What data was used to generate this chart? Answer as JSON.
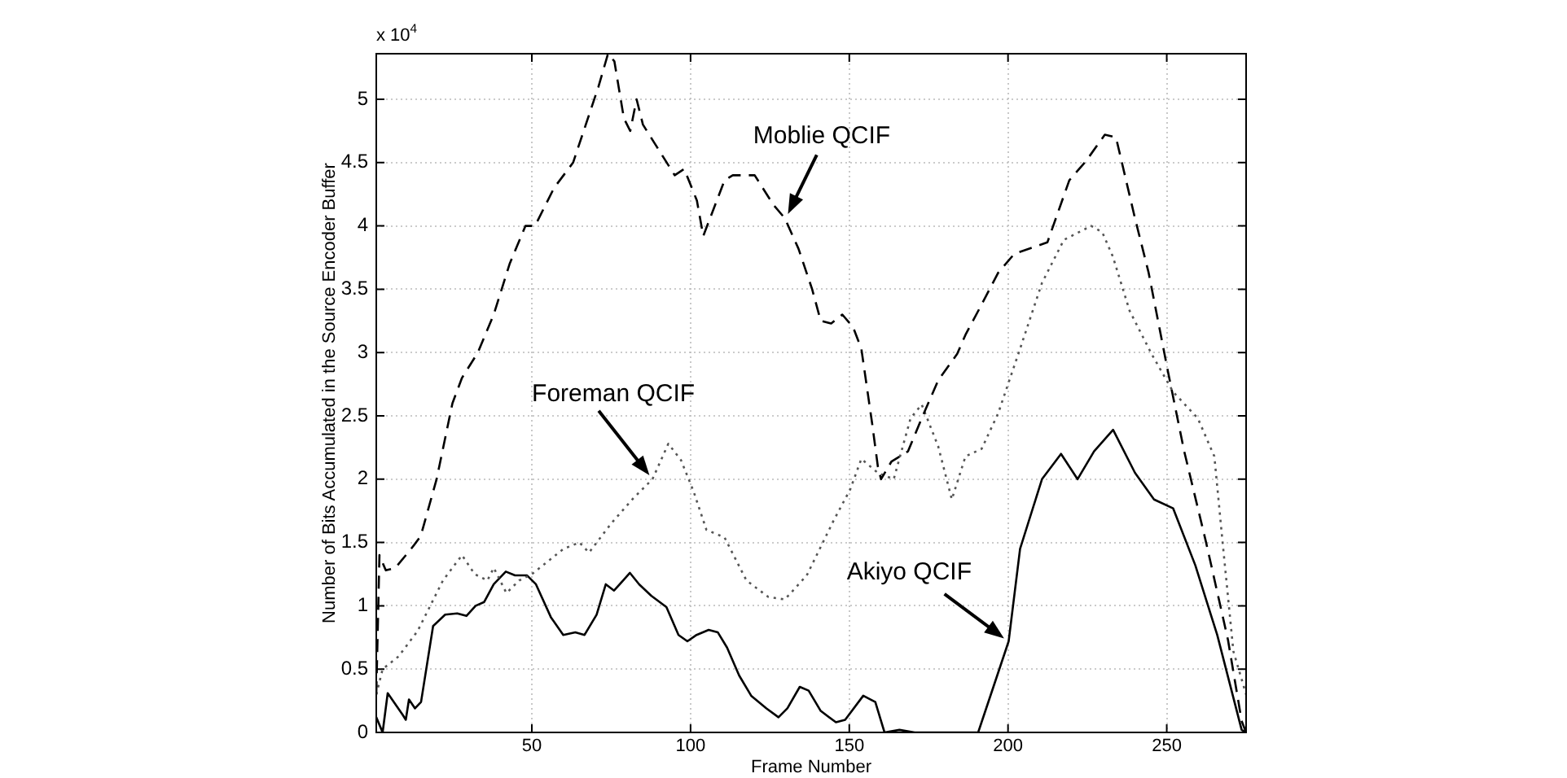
{
  "chart_data": {
    "type": "line",
    "xlabel": "Frame Number",
    "ylabel": "Number of Bits Accumulated in the Source Encoder Buffer",
    "xlim": [
      1,
      275
    ],
    "xticks": [
      50,
      100,
      150,
      200,
      250
    ],
    "ylim": [
      0,
      5.36
    ],
    "yticks": [
      0,
      0.5,
      1,
      1.5,
      2,
      2.5,
      3,
      3.5,
      4,
      4.5,
      5
    ],
    "grid": true,
    "legend": false,
    "marker": "none",
    "annotations": [
      "x 10$^{4}$",
      {
        "text": "Moblie QCIF",
        "x": 130,
        "y": 4.06
      },
      {
        "text": "Foreman QCIF",
        "x": 88,
        "y": 2.0
      },
      {
        "text": "Akiyo QCIF",
        "x": 200,
        "y": 0.72
      }
    ],
    "series": [
      {
        "color": "#000000",
        "line_style": "dashed",
        "x": [
          1,
          2,
          4,
          7,
          12,
          15,
          20,
          25,
          28,
          33,
          38,
          43,
          48,
          51,
          57,
          63,
          67,
          71,
          74,
          76,
          79,
          81,
          83,
          85,
          90,
          95,
          98,
          102,
          104,
          110.7,
          113.3,
          120.2,
          126,
          129.7,
          134,
          138.3,
          141,
          144.3,
          147.8,
          151.2,
          153.8,
          157.2,
          159,
          160,
          163.3,
          168.5,
          172.8,
          178,
          184,
          186.6,
          191.7,
          196.9,
          202,
          212.4,
          219.3,
          224.5,
          230.5,
          234,
          240,
          244.3,
          250.3,
          255.5,
          262.4,
          269.3,
          273.6,
          275
        ],
        "values": [
          0.3,
          1.4,
          1.28,
          1.3,
          1.45,
          1.55,
          2.0,
          2.6,
          2.8,
          3.0,
          3.3,
          3.7,
          4.0,
          4.0,
          4.3,
          4.5,
          4.8,
          5.1,
          5.36,
          5.3,
          4.85,
          4.75,
          5.0,
          4.8,
          4.6,
          4.4,
          4.45,
          4.2,
          3.92,
          4.36,
          4.4,
          4.4,
          4.17,
          4.06,
          3.82,
          3.5,
          3.25,
          3.23,
          3.3,
          3.2,
          3.03,
          2.44,
          2.1,
          2.0,
          2.14,
          2.22,
          2.48,
          2.78,
          2.99,
          3.14,
          3.38,
          3.63,
          3.78,
          3.87,
          4.36,
          4.51,
          4.72,
          4.7,
          4.06,
          3.63,
          2.86,
          2.22,
          1.5,
          0.73,
          0.09,
          0
        ]
      },
      {
        "color": "#555555",
        "line_style": "dotted",
        "x": [
          1,
          3,
          8,
          14,
          18,
          22,
          28,
          32,
          36,
          38,
          42,
          46,
          50,
          55,
          60,
          65,
          68,
          75,
          82,
          88,
          93,
          97,
          101,
          105,
          110.7,
          117.6,
          124.5,
          129.7,
          136.6,
          145,
          150.3,
          153.8,
          159,
          164,
          169.3,
          172.8,
          178,
          182.3,
          186.6,
          191.7,
          196.9,
          203.8,
          210.7,
          217.6,
          226.2,
          229.7,
          233,
          238.3,
          245.2,
          252,
          259.8,
          265,
          267.6,
          271,
          275
        ],
        "values": [
          0.3,
          0.5,
          0.6,
          0.8,
          1.0,
          1.2,
          1.4,
          1.25,
          1.2,
          1.3,
          1.1,
          1.2,
          1.25,
          1.35,
          1.45,
          1.5,
          1.42,
          1.65,
          1.85,
          2.0,
          2.28,
          2.15,
          1.9,
          1.6,
          1.54,
          1.2,
          1.07,
          1.05,
          1.24,
          1.67,
          1.92,
          2.16,
          2.05,
          2.0,
          2.48,
          2.59,
          2.26,
          1.84,
          2.18,
          2.24,
          2.52,
          3.03,
          3.55,
          3.89,
          4.0,
          3.95,
          3.76,
          3.33,
          2.99,
          2.69,
          2.48,
          2.18,
          1.5,
          0.64,
          0.3
        ]
      },
      {
        "color": "#000000",
        "line_style": "solid",
        "x": [
          1,
          3,
          4.6,
          9.3,
          10.3,
          11.3,
          13.2,
          15.1,
          18.9,
          22.7,
          26.5,
          29.4,
          32.3,
          35,
          38,
          41.8,
          44.7,
          48.5,
          51.3,
          56,
          59.9,
          63.7,
          66.6,
          70.4,
          73.3,
          75.9,
          80.9,
          83.8,
          87.6,
          92.4,
          96.2,
          99,
          101.9,
          105.7,
          108.6,
          111.5,
          115.3,
          119.1,
          123.9,
          127.7,
          130.5,
          134.4,
          137.2,
          141,
          145.8,
          148.7,
          154.4,
          158.2,
          161.1,
          165.8,
          170.6,
          190.6,
          195.4,
          200.2,
          203.8,
          210.7,
          216.7,
          221.9,
          227.1,
          233.1,
          240,
          246,
          252,
          259,
          265.9,
          273.6,
          275
        ],
        "values": [
          0.12,
          0,
          0.31,
          0.14,
          0.1,
          0.26,
          0.19,
          0.24,
          0.84,
          0.93,
          0.94,
          0.92,
          1.0,
          1.03,
          1.17,
          1.27,
          1.24,
          1.24,
          1.17,
          0.91,
          0.77,
          0.79,
          0.77,
          0.93,
          1.17,
          1.12,
          1.26,
          1.17,
          1.08,
          0.99,
          0.77,
          0.72,
          0.77,
          0.81,
          0.79,
          0.67,
          0.45,
          0.29,
          0.19,
          0.12,
          0.19,
          0.36,
          0.33,
          0.17,
          0.08,
          0.1,
          0.29,
          0.24,
          0,
          0.02,
          0,
          0,
          0.36,
          0.72,
          1.45,
          2.0,
          2.2,
          2.0,
          2.22,
          2.39,
          2.05,
          1.84,
          1.77,
          1.32,
          0.77,
          0.02,
          0
        ]
      }
    ]
  }
}
